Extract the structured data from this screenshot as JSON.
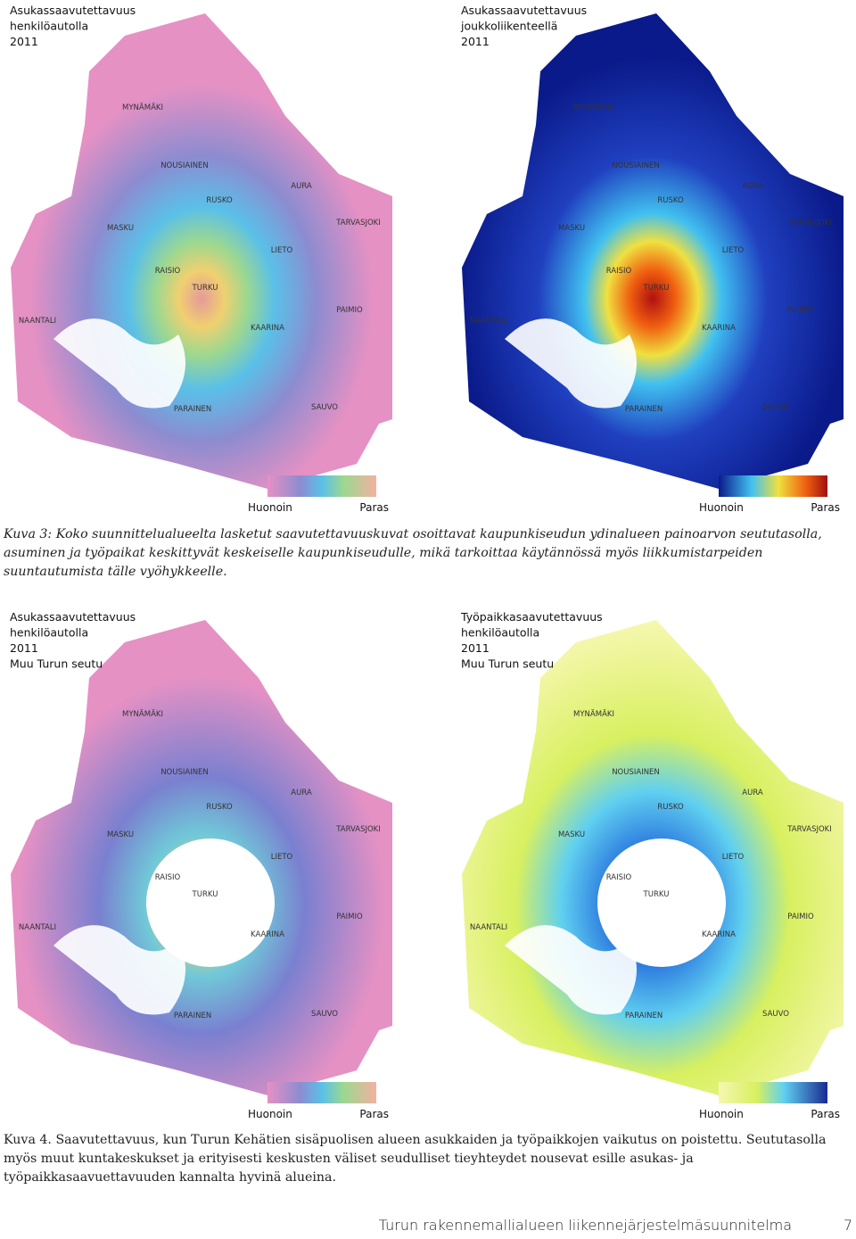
{
  "figures": [
    {
      "maps": [
        {
          "title": [
            "Asukassaavutettavuus",
            "henkilöautolla",
            "2011"
          ],
          "places": [
            "MYNÄMÄKI",
            "NOUSIAINEN",
            "AURA",
            "RUSKO",
            "MASKU",
            "TARVASJOKI",
            "LIETO",
            "RAISIO",
            "TURKU",
            "PAIMIO",
            "NAANTALI",
            "KAARINA",
            "PARAINEN",
            "SAUVO"
          ],
          "legend": {
            "low": "Huonoin",
            "high": "Paras"
          }
        },
        {
          "title": [
            "Asukassaavutettavuus",
            "joukkoliikenteellä",
            "2011"
          ],
          "places": [
            "MYNÄMÄKI",
            "NOUSIAINEN",
            "AURA",
            "RUSKO",
            "MASKU",
            "TARVASJOKI",
            "LIETO",
            "RAISIO",
            "TURKU",
            "PAIMIO",
            "NAANTALI",
            "KAARINA",
            "PARAINEN",
            "SAUVO"
          ],
          "legend": {
            "low": "Huonoin",
            "high": "Paras"
          }
        }
      ],
      "caption": "Kuva 3: Koko suunnittelualueelta lasketut saavutettavuuskuvat osoittavat kaupunkiseudun ydinalueen painoarvon seututasolla, asuminen ja työpaikat keskittyvät keskeiselle kaupunkiseudulle, mikä tarkoittaa käytännössä myös liikkumistarpeiden suuntautumista tälle vyöhykkeelle."
    },
    {
      "maps": [
        {
          "title": [
            "Asukassaavutettavuus",
            "henkilöautolla",
            "2011",
            "Muu Turun seutu"
          ],
          "places": [
            "MYNÄMÄKI",
            "NOUSIAINEN",
            "AURA",
            "RUSKO",
            "MASKU",
            "TARVASJOKI",
            "LIETO",
            "RAISIO",
            "TURKU",
            "PAIMIO",
            "NAANTALI",
            "KAARINA",
            "PARAINEN",
            "SAUVO"
          ],
          "legend": {
            "low": "Huonoin",
            "high": "Paras"
          }
        },
        {
          "title": [
            "Työpaikkasaavutettavuus",
            "henkilöautolla",
            "2011",
            "Muu Turun seutu"
          ],
          "places": [
            "MYNÄMÄKI",
            "NOUSIAINEN",
            "AURA",
            "RUSKO",
            "MASKU",
            "TARVASJOKI",
            "LIETO",
            "RAISIO",
            "TURKU",
            "PAIMIO",
            "NAANTALI",
            "KAARINA",
            "PARAINEN",
            "SAUVO"
          ],
          "legend": {
            "low": "Huonoin",
            "high": "Paras"
          }
        }
      ],
      "caption": "Kuva 4. Saavutettavuus, kun Turun Kehätien sisäpuolisen alueen asukkaiden ja työpaikkojen vaikutus on poistettu. Seututasolla myös muut kuntakeskukset ja erityisesti keskusten väliset seudulliset tieyhteydet nousevat esille asukas- ja työpaikkasaavuettavuuden kannalta hyvinä alueina."
    }
  ],
  "footer": {
    "title": "Turun rakennemallialueen liikennejärjestelmäsuunnitelma",
    "page": 7
  }
}
